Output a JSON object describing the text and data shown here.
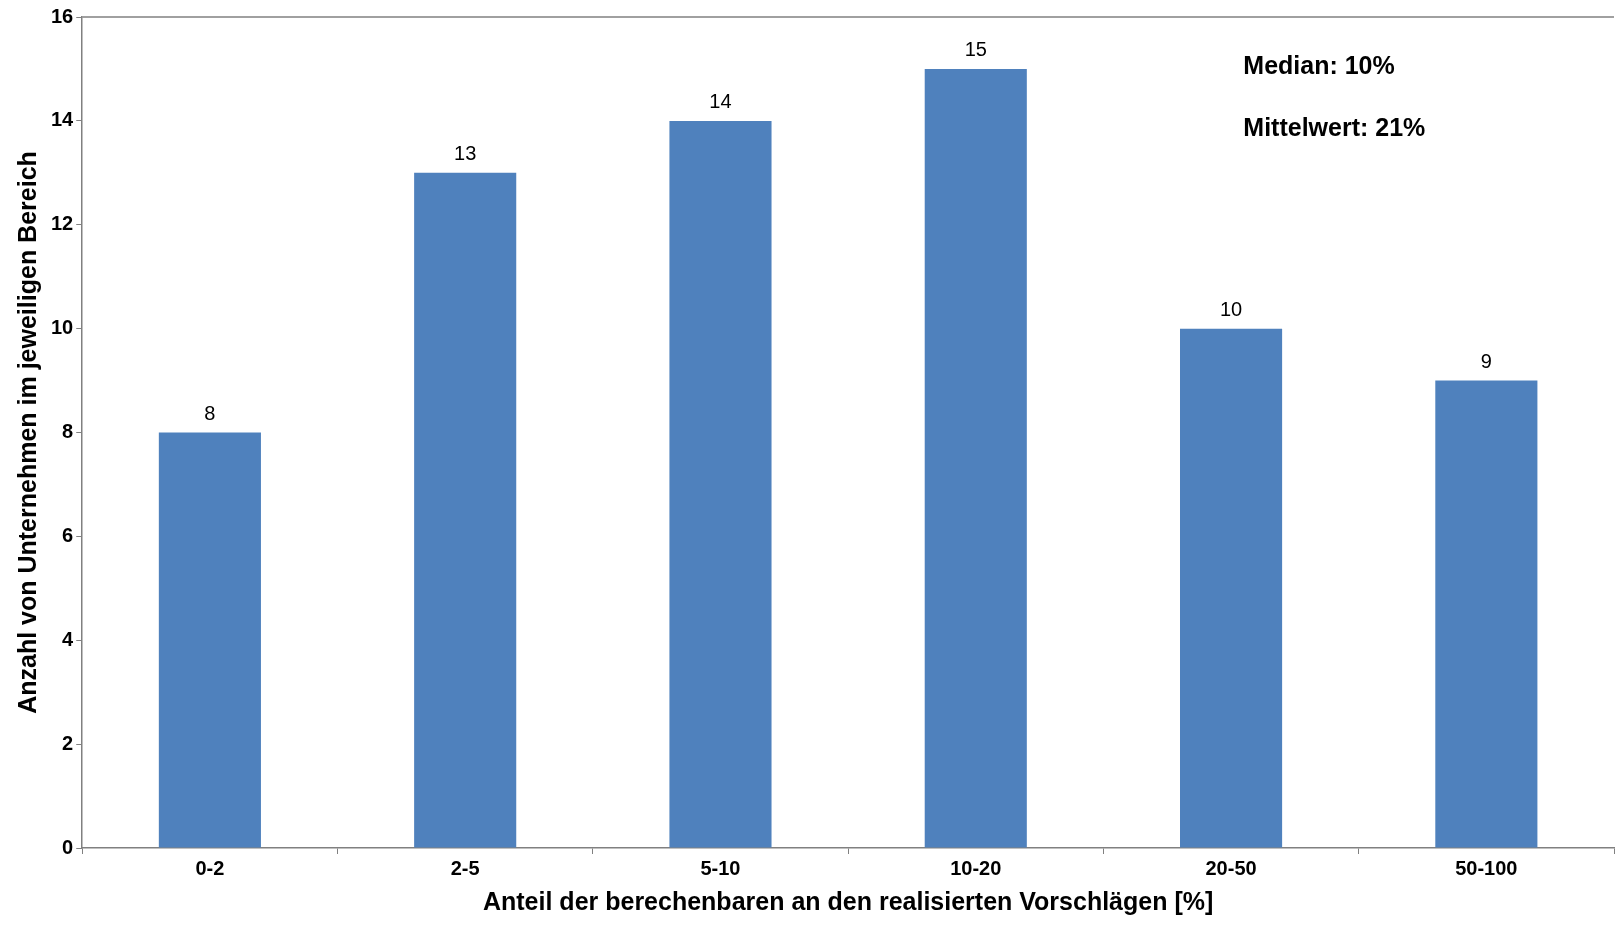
{
  "chart_data": {
    "type": "bar",
    "xlabel": "Anteil der berechenbaren an den realisierten Vorschlägen [%]",
    "ylabel": "Anzahl von Unternehmen im jeweiligen Bereich",
    "categories": [
      "0-2",
      "2-5",
      "5-10",
      "10-20",
      "20-50",
      "50-100"
    ],
    "values": [
      8,
      13,
      14,
      15,
      10,
      9
    ],
    "color": "#4f81bd",
    "ylim": [
      0,
      16
    ],
    "yticks": [
      0,
      2,
      4,
      6,
      8,
      10,
      12,
      14,
      16
    ],
    "grid": false,
    "data_labels": true,
    "annotations": [
      "Median: 10%",
      "Mittelwert: 21%"
    ]
  }
}
